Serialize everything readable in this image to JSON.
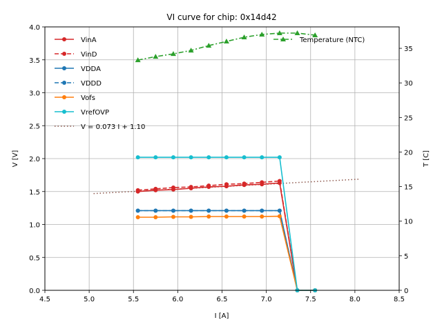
{
  "chart_data": {
    "type": "line",
    "title": "VI curve for chip: 0x14d42",
    "xlabel": "I [A]",
    "ylabel": "V [V]",
    "y2label": "T [C]",
    "xlim": [
      4.5,
      8.5
    ],
    "ylim": [
      0,
      4.0
    ],
    "y2lim": [
      0,
      38.1
    ],
    "grid": true,
    "xticks": [
      "4.5",
      "5.0",
      "5.5",
      "6.0",
      "6.5",
      "7.0",
      "7.5",
      "8.0",
      "8.5"
    ],
    "yticks": [
      "0.0",
      "0.5",
      "1.0",
      "1.5",
      "2.0",
      "2.5",
      "3.0",
      "3.5",
      "4.0"
    ],
    "y2ticks": [
      "0",
      "5",
      "10",
      "15",
      "20",
      "25",
      "30",
      "35"
    ],
    "legend_left": "top-left",
    "legend_right": "top-right",
    "x": [
      5.55,
      5.75,
      5.95,
      6.15,
      6.35,
      6.55,
      6.75,
      6.95,
      7.15,
      7.35,
      7.55
    ],
    "series": [
      {
        "name": "VinA",
        "color": "#d62728",
        "style": "solid",
        "marker": "circle",
        "axis": "left",
        "values": [
          1.5,
          1.52,
          1.53,
          1.55,
          1.57,
          1.58,
          1.6,
          1.61,
          1.63,
          0.0,
          0.0
        ]
      },
      {
        "name": "VinD",
        "color": "#d62728",
        "style": "dashed",
        "marker": "circle",
        "axis": "left",
        "values": [
          1.52,
          1.54,
          1.56,
          1.57,
          1.59,
          1.61,
          1.62,
          1.64,
          1.66,
          0.0,
          0.0
        ]
      },
      {
        "name": "VDDA",
        "color": "#1f77b4",
        "style": "solid",
        "marker": "circle",
        "axis": "left",
        "values": [
          1.21,
          1.21,
          1.21,
          1.21,
          1.21,
          1.21,
          1.21,
          1.21,
          1.21,
          0.0,
          0.0
        ]
      },
      {
        "name": "VDDD",
        "color": "#1f77b4",
        "style": "dashed",
        "marker": "circle",
        "axis": "left",
        "values": [
          1.21,
          1.21,
          1.21,
          1.21,
          1.21,
          1.21,
          1.21,
          1.21,
          1.21,
          0.0,
          0.0
        ]
      },
      {
        "name": "Vofs",
        "color": "#ff7f0e",
        "style": "solid",
        "marker": "circle",
        "axis": "left",
        "values": [
          1.11,
          1.11,
          1.115,
          1.115,
          1.12,
          1.12,
          1.12,
          1.12,
          1.125,
          0.0,
          0.0
        ]
      },
      {
        "name": "VrefOVP",
        "color": "#17becf",
        "style": "solid",
        "marker": "circle",
        "axis": "left",
        "values": [
          2.02,
          2.02,
          2.02,
          2.02,
          2.02,
          2.02,
          2.02,
          2.02,
          2.02,
          0.0,
          0.0
        ]
      },
      {
        "name": "Temperature (NTC)",
        "color": "#2ca02c",
        "style": "dashdot",
        "marker": "triangle",
        "axis": "right",
        "values": [
          33.3,
          33.8,
          34.2,
          34.7,
          35.4,
          36.0,
          36.6,
          37.0,
          37.2,
          37.2,
          36.9
        ]
      }
    ],
    "fit": {
      "name": "V = 0.073 I + 1.10",
      "color": "#8c564b",
      "style": "dotted",
      "slope": 0.073,
      "intercept": 1.1,
      "x_range": [
        5.05,
        8.05
      ]
    }
  }
}
